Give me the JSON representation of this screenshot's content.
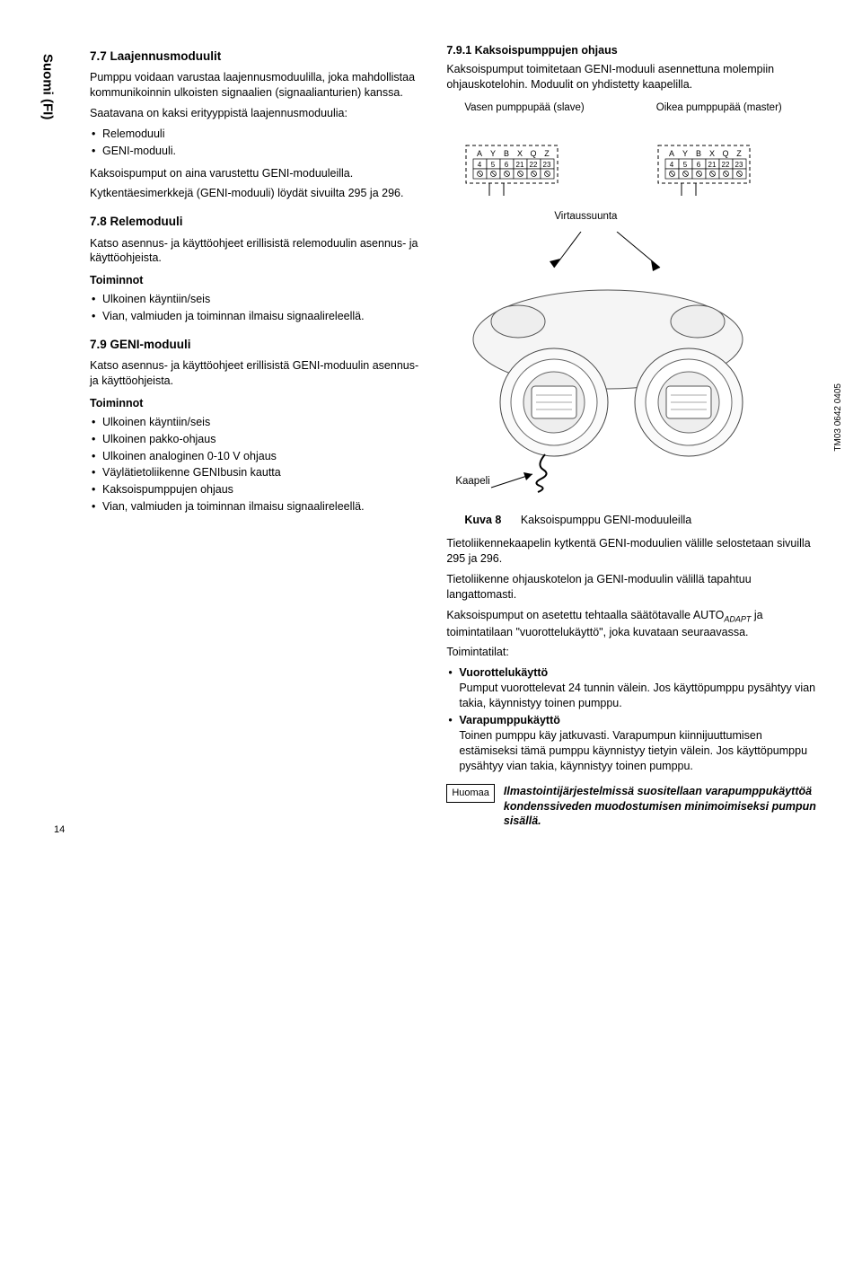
{
  "sideLabel": "Suomi (FI)",
  "left": {
    "h77": "7.7 Laajennusmoduulit",
    "p77a": "Pumppu voidaan varustaa laajennusmoduulilla, joka mahdollistaa kommunikoinnin ulkoisten signaalien (signaalianturien) kanssa.",
    "p77b": "Saatavana on kaksi erityyppistä laajennusmoduulia:",
    "li77": [
      "Relemoduuli",
      "GENI-moduuli."
    ],
    "p77c": "Kaksoispumput on aina varustettu GENI-moduuleilla.",
    "p77d": "Kytkentäesimerkkejä (GENI-moduuli) löydät sivuilta 295 ja 296.",
    "h78": "7.8 Relemoduuli",
    "p78a": "Katso asennus- ja käyttöohjeet erillisistä relemoduulin asennus- ja käyttöohjeista.",
    "funcLabel1": "Toiminnot",
    "li78": [
      "Ulkoinen käyntiin/seis",
      "Vian, valmiuden ja toiminnan ilmaisu signaalireleellä."
    ],
    "h79": "7.9 GENI-moduuli",
    "p79a": "Katso asennus- ja käyttöohjeet erillisistä GENI-moduulin asennus- ja käyttöohjeista.",
    "funcLabel2": "Toiminnot",
    "li79": [
      "Ulkoinen käyntiin/seis",
      "Ulkoinen pakko-ohjaus",
      "Ulkoinen analoginen 0-10 V ohjaus",
      "Väylätietoliikenne GENIbusin kautta",
      "Kaksoispumppujen ohjaus",
      "Vian, valmiuden ja toiminnan ilmaisu signaalireleellä."
    ]
  },
  "right": {
    "h791": "7.9.1 Kaksoispumppujen ohjaus",
    "p791a": "Kaksoispumput toimitetaan GENI-moduuli asennettuna molempiin ohjauskotelohin. Moduulit on yhdistetty kaapelilla.",
    "leftTermLabel": "Vasen pumppupää (slave)",
    "rightTermLabel": "Oikea pumppupää (master)",
    "termLetters": [
      "A",
      "Y",
      "B",
      "X",
      "Q",
      "Z"
    ],
    "termNums": [
      "4",
      "5",
      "6",
      "21",
      "22",
      "23"
    ],
    "flowLabel": "Virtaussuunta",
    "cableLabel": "Kaapeli",
    "tmLabel": "TM03 0642 0405",
    "figNum": "Kuva 8",
    "figText": "Kaksoispumppu GENI-moduuleilla",
    "p791b": "Tietoliikennekaapelin kytkentä GENI-moduulien välille selostetaan sivuilla 295 ja 296.",
    "p791c": "Tietoliikenne ohjauskotelon ja GENI-moduulin välillä tapahtuu langattomasti.",
    "p791d1": "Kaksoispumput on asetettu tehtaalla säätötavalle AUTO",
    "p791d2": " ja toimintatilaan \"vuorottelukäyttö\", joka kuvataan seuraavassa.",
    "adapt": "ADAPT",
    "opTitle": "Toimintatilat:",
    "op1t": "Vuorottelukäyttö",
    "op1p": "Pumput vuorottelevat 24 tunnin välein. Jos käyttöpumppu pysähtyy vian takia, käynnistyy toinen pumppu.",
    "op2t": "Varapumppukäyttö",
    "op2p": "Toinen pumppu käy jatkuvasti. Varapumpun kiinnijuuttumisen estämiseksi tämä pumppu käynnistyy tietyin välein. Jos käyttöpumppu pysähtyy vian takia, käynnistyy toinen pumppu.",
    "noteBox": "Huomaa",
    "noteText": "Ilmastointijärjestelmissä suositellaan varapumppukäyttöä kondenssiveden muodostumisen minimoimiseksi pumpun sisällä."
  },
  "pageNum": "14"
}
